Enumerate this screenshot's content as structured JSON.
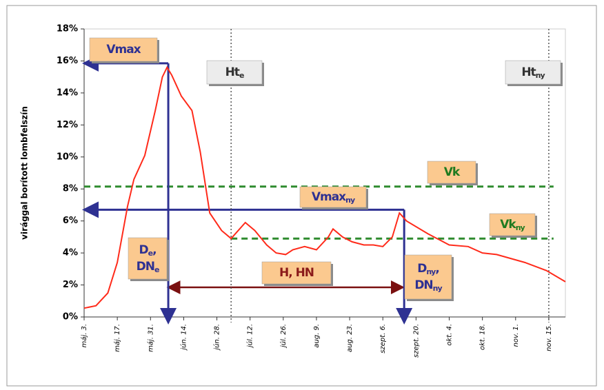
{
  "chart_data": {
    "type": "line",
    "y_label": "virággal borított lombfelszín",
    "xlim": [
      0,
      203
    ],
    "xticks": [
      {
        "value": 0,
        "label": "máj. 3."
      },
      {
        "value": 14,
        "label": "máj. 17."
      },
      {
        "value": 28,
        "label": "máj. 31."
      },
      {
        "value": 42,
        "label": "jún. 14."
      },
      {
        "value": 56,
        "label": "jún. 28."
      },
      {
        "value": 70,
        "label": "júl. 12."
      },
      {
        "value": 84,
        "label": "júl. 26."
      },
      {
        "value": 98,
        "label": "aug. 9."
      },
      {
        "value": 112,
        "label": "aug. 23."
      },
      {
        "value": 126,
        "label": "szept. 6."
      },
      {
        "value": 140,
        "label": "szept. 20."
      },
      {
        "value": 154,
        "label": "okt. 4."
      },
      {
        "value": 168,
        "label": "okt. 18."
      },
      {
        "value": 182,
        "label": "nov. 1."
      },
      {
        "value": 196,
        "label": "nov. 15."
      }
    ],
    "ylim": [
      0,
      18
    ],
    "yticks": [
      {
        "value": 0,
        "label": "0%"
      },
      {
        "value": 2,
        "label": "2%"
      },
      {
        "value": 4,
        "label": "4%"
      },
      {
        "value": 6,
        "label": "6%"
      },
      {
        "value": 8,
        "label": "8%"
      },
      {
        "value": 10,
        "label": "10%"
      },
      {
        "value": 12,
        "label": "12%"
      },
      {
        "value": 14,
        "label": "14%"
      },
      {
        "value": 16,
        "label": "16%"
      },
      {
        "value": 18,
        "label": "18%"
      }
    ],
    "grid": false,
    "series": [
      {
        "color": "#ff2a1a",
        "x": [
          0,
          5,
          10,
          14,
          18.3,
          21,
          25.6,
          30,
          33,
          35,
          37,
          41,
          45.5,
          49,
          53,
          58,
          62,
          65,
          68,
          72,
          77,
          81,
          85,
          88,
          93,
          98,
          103,
          105,
          109,
          113,
          118,
          122,
          126,
          130,
          133,
          136,
          145,
          154,
          162,
          168,
          174,
          186,
          195,
          203
        ],
        "values": [
          0.55,
          0.7,
          1.5,
          3.4,
          6.9,
          8.6,
          10.1,
          12.9,
          15.0,
          15.6,
          15.1,
          13.8,
          12.9,
          10.3,
          6.5,
          5.4,
          4.9,
          5.4,
          5.9,
          5.4,
          4.5,
          4.0,
          3.9,
          4.2,
          4.4,
          4.2,
          5.0,
          5.5,
          5.0,
          4.7,
          4.5,
          4.5,
          4.4,
          5.0,
          6.5,
          6.0,
          5.2,
          4.5,
          4.4,
          4.0,
          3.9,
          3.4,
          2.9,
          2.2
        ]
      }
    ],
    "h_lines": [
      {
        "value": 15.85,
        "from": 0,
        "to": 35.5,
        "color": "#2e3192",
        "style": "arrow"
      },
      {
        "value": 6.7,
        "from": 0,
        "to": 135,
        "color": "#2e3192",
        "style": "arrow"
      },
      {
        "value": 8.15,
        "from": 0,
        "to": 198,
        "color": "#2e8b2e",
        "style": "dashed"
      },
      {
        "value": 4.9,
        "from": 62,
        "to": 198,
        "color": "#2e8b2e",
        "style": "dashed"
      },
      {
        "value": 1.85,
        "from": 35.5,
        "to": 134.5,
        "color": "#7a1010",
        "style": "double"
      }
    ],
    "v_lines": [
      {
        "value": 35.5,
        "top": 15.85,
        "color": "#2e3192",
        "style": "arrow"
      },
      {
        "value": 135,
        "top": 6.7,
        "color": "#2e3192",
        "style": "arrow"
      },
      {
        "value": 62,
        "top": 18,
        "color": "#555555",
        "style": "dotted"
      },
      {
        "value": 196,
        "top": 18,
        "color": "#555555",
        "style": "dotted"
      }
    ],
    "annotations": [
      {
        "color": "#2e3192",
        "lines": [
          [
            {
              "t": "Vmax"
            }
          ]
        ]
      },
      {
        "color": "#333333",
        "lines": [
          [
            {
              "t": "Ht"
            },
            {
              "t": "e",
              "sub": true
            }
          ]
        ]
      },
      {
        "color": "#333333",
        "lines": [
          [
            {
              "t": "Ht"
            },
            {
              "t": "ny",
              "sub": true
            }
          ]
        ]
      },
      {
        "color": "#1f7a1f",
        "lines": [
          [
            {
              "t": "Vk"
            }
          ]
        ]
      },
      {
        "color": "#2e3192",
        "lines": [
          [
            {
              "t": "Vmax"
            },
            {
              "t": "ny",
              "sub": true
            }
          ]
        ]
      },
      {
        "color": "#1f7a1f",
        "lines": [
          [
            {
              "t": "Vk"
            },
            {
              "t": "ny",
              "sub": true
            }
          ]
        ]
      },
      {
        "color": "#2e3192",
        "lines": [
          [
            {
              "t": "D"
            },
            {
              "t": "e",
              "sub": true
            },
            {
              "t": ","
            }
          ],
          [
            {
              "t": "DN"
            },
            {
              "t": "e",
              "sub": true
            }
          ]
        ]
      },
      {
        "color": "#8b1a1a",
        "lines": [
          [
            {
              "t": "H, HN"
            }
          ]
        ]
      },
      {
        "color": "#2e3192",
        "lines": [
          [
            {
              "t": "D"
            },
            {
              "t": "ny",
              "sub": true
            },
            {
              "t": ","
            }
          ],
          [
            {
              "t": "DN"
            },
            {
              "t": "ny",
              "sub": true
            }
          ]
        ]
      }
    ]
  }
}
